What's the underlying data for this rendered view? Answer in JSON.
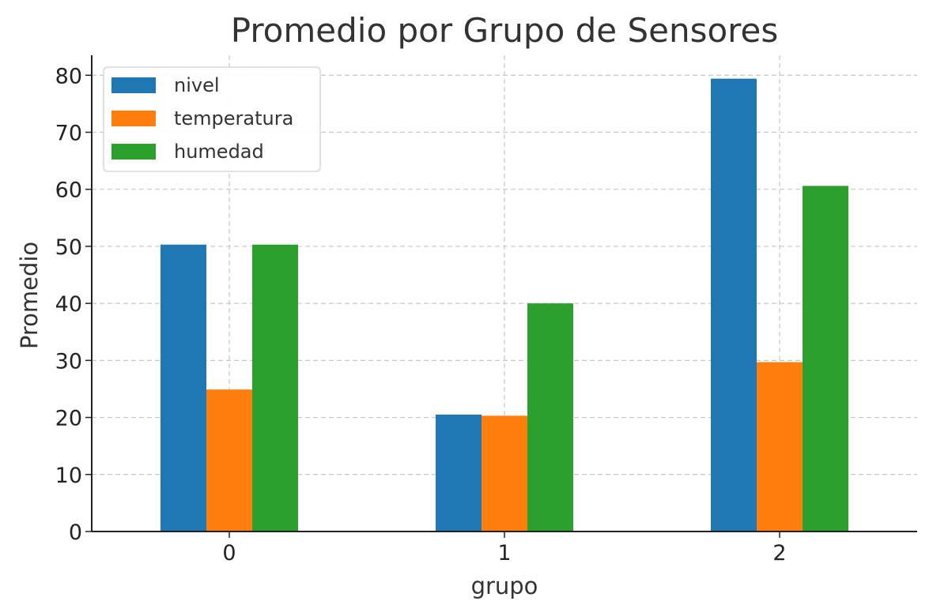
{
  "chart_data": {
    "type": "bar",
    "title": "Promedio por Grupo de Sensores",
    "xlabel": "grupo",
    "ylabel": "Promedio",
    "categories": [
      "0",
      "1",
      "2"
    ],
    "series": [
      {
        "name": "nivel",
        "color": "#1f77b4",
        "values": [
          50.3,
          20.5,
          79.4
        ]
      },
      {
        "name": "temperatura",
        "color": "#ff7f0e",
        "values": [
          24.9,
          20.3,
          29.7
        ]
      },
      {
        "name": "humedad",
        "color": "#2ca02c",
        "values": [
          50.3,
          40.0,
          60.6
        ]
      }
    ],
    "ylim": [
      0,
      83.5
    ],
    "yticks": [
      0,
      10,
      20,
      30,
      40,
      50,
      60,
      70,
      80
    ],
    "grid": true,
    "legend_position": "top-left"
  }
}
